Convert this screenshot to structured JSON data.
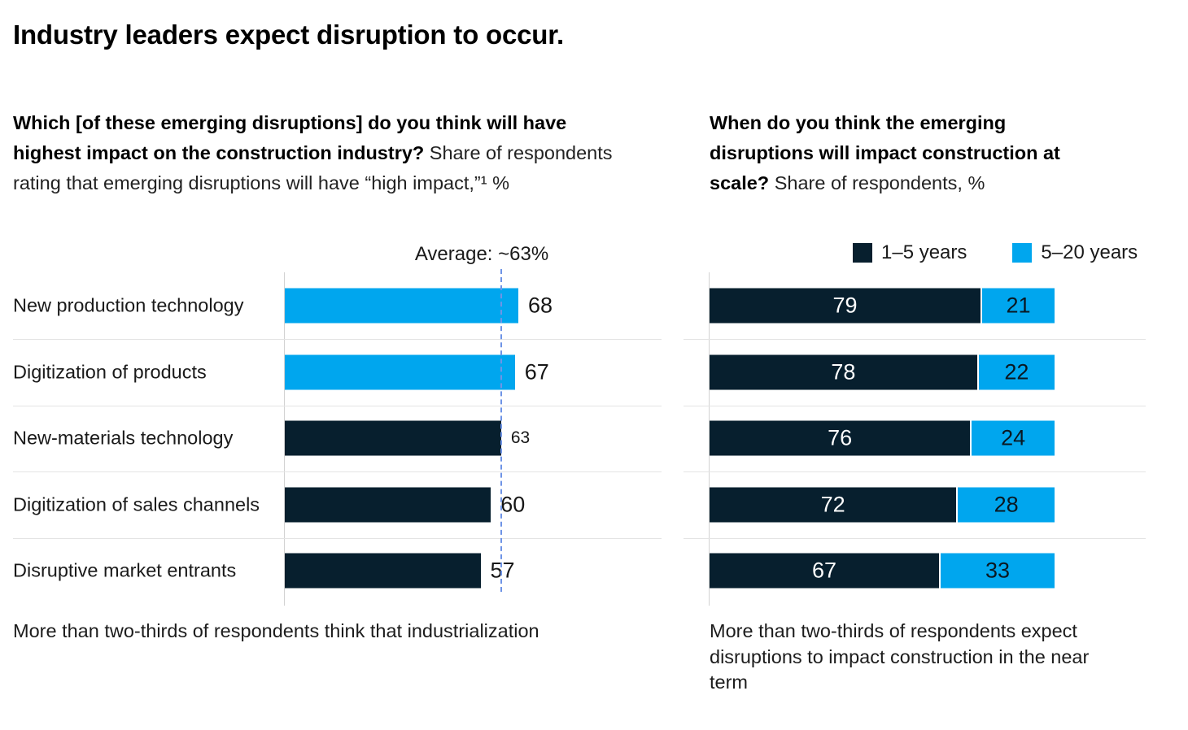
{
  "title": "Industry leaders expect disruption to occur.",
  "palette": {
    "navy": "#071f2e",
    "cyan": "#00a6ee",
    "avgline": "#6f94e6",
    "grid": "#e4e4e4",
    "axis": "#d2d2d2"
  },
  "left_panel": {
    "heading": {
      "line1_bold": "Which [of these emerging disruptions] do you think will have",
      "line2_bold": "highest impact on the construction industry?",
      "line2_regular": " Share of respondents",
      "line3_regular": "rating that emerging disruptions will have “high impact,”¹ %"
    },
    "average_label": "Average: ~63%",
    "footnote": "More than two-thirds of respondents think that industrialization"
  },
  "right_panel": {
    "heading": {
      "line1_bold": "When do you think the emerging",
      "line2_bold": "disruptions will impact construction at",
      "line3_bold": "scale?",
      "line3_regular": " Share of respondents, %"
    },
    "footnote": "More than two-thirds of respondents expect disruptions to impact construction in the near term"
  },
  "chart_data": [
    {
      "type": "bar",
      "orientation": "horizontal",
      "title": "Which [of these emerging disruptions] do you think will have highest impact on the construction industry?",
      "subtitle": "Share of respondents rating that emerging disruptions will have “high impact,”¹ %",
      "categories": [
        "New production technology",
        "Digitization of products",
        "New-materials technology",
        "Digitization of sales channels",
        "Disruptive market entrants"
      ],
      "values": [
        68,
        67,
        63,
        60,
        57
      ],
      "bar_colors": [
        "cyan",
        "cyan",
        "navy",
        "navy",
        "navy"
      ],
      "average_value": 63,
      "average_label": "Average: ~63%",
      "xlim": [
        0,
        110
      ],
      "grid": "row-separators",
      "value_labels": "outside-end"
    },
    {
      "type": "bar",
      "subtype": "stacked",
      "orientation": "horizontal",
      "title": "When do you think the emerging disruptions will impact construction at scale?",
      "subtitle": "Share of respondents, %",
      "categories": [
        "New production technology",
        "Digitization of products",
        "New-materials technology",
        "Digitization of sales channels",
        "Disruptive market entrants"
      ],
      "series": [
        {
          "name": "1–5 years",
          "color": "navy",
          "values": [
            79,
            78,
            76,
            72,
            67
          ]
        },
        {
          "name": "5–20 years",
          "color": "cyan",
          "values": [
            21,
            22,
            24,
            28,
            33
          ]
        }
      ],
      "xlim": [
        0,
        100
      ],
      "legend_position": "top-right",
      "value_labels": "inside-center"
    }
  ]
}
